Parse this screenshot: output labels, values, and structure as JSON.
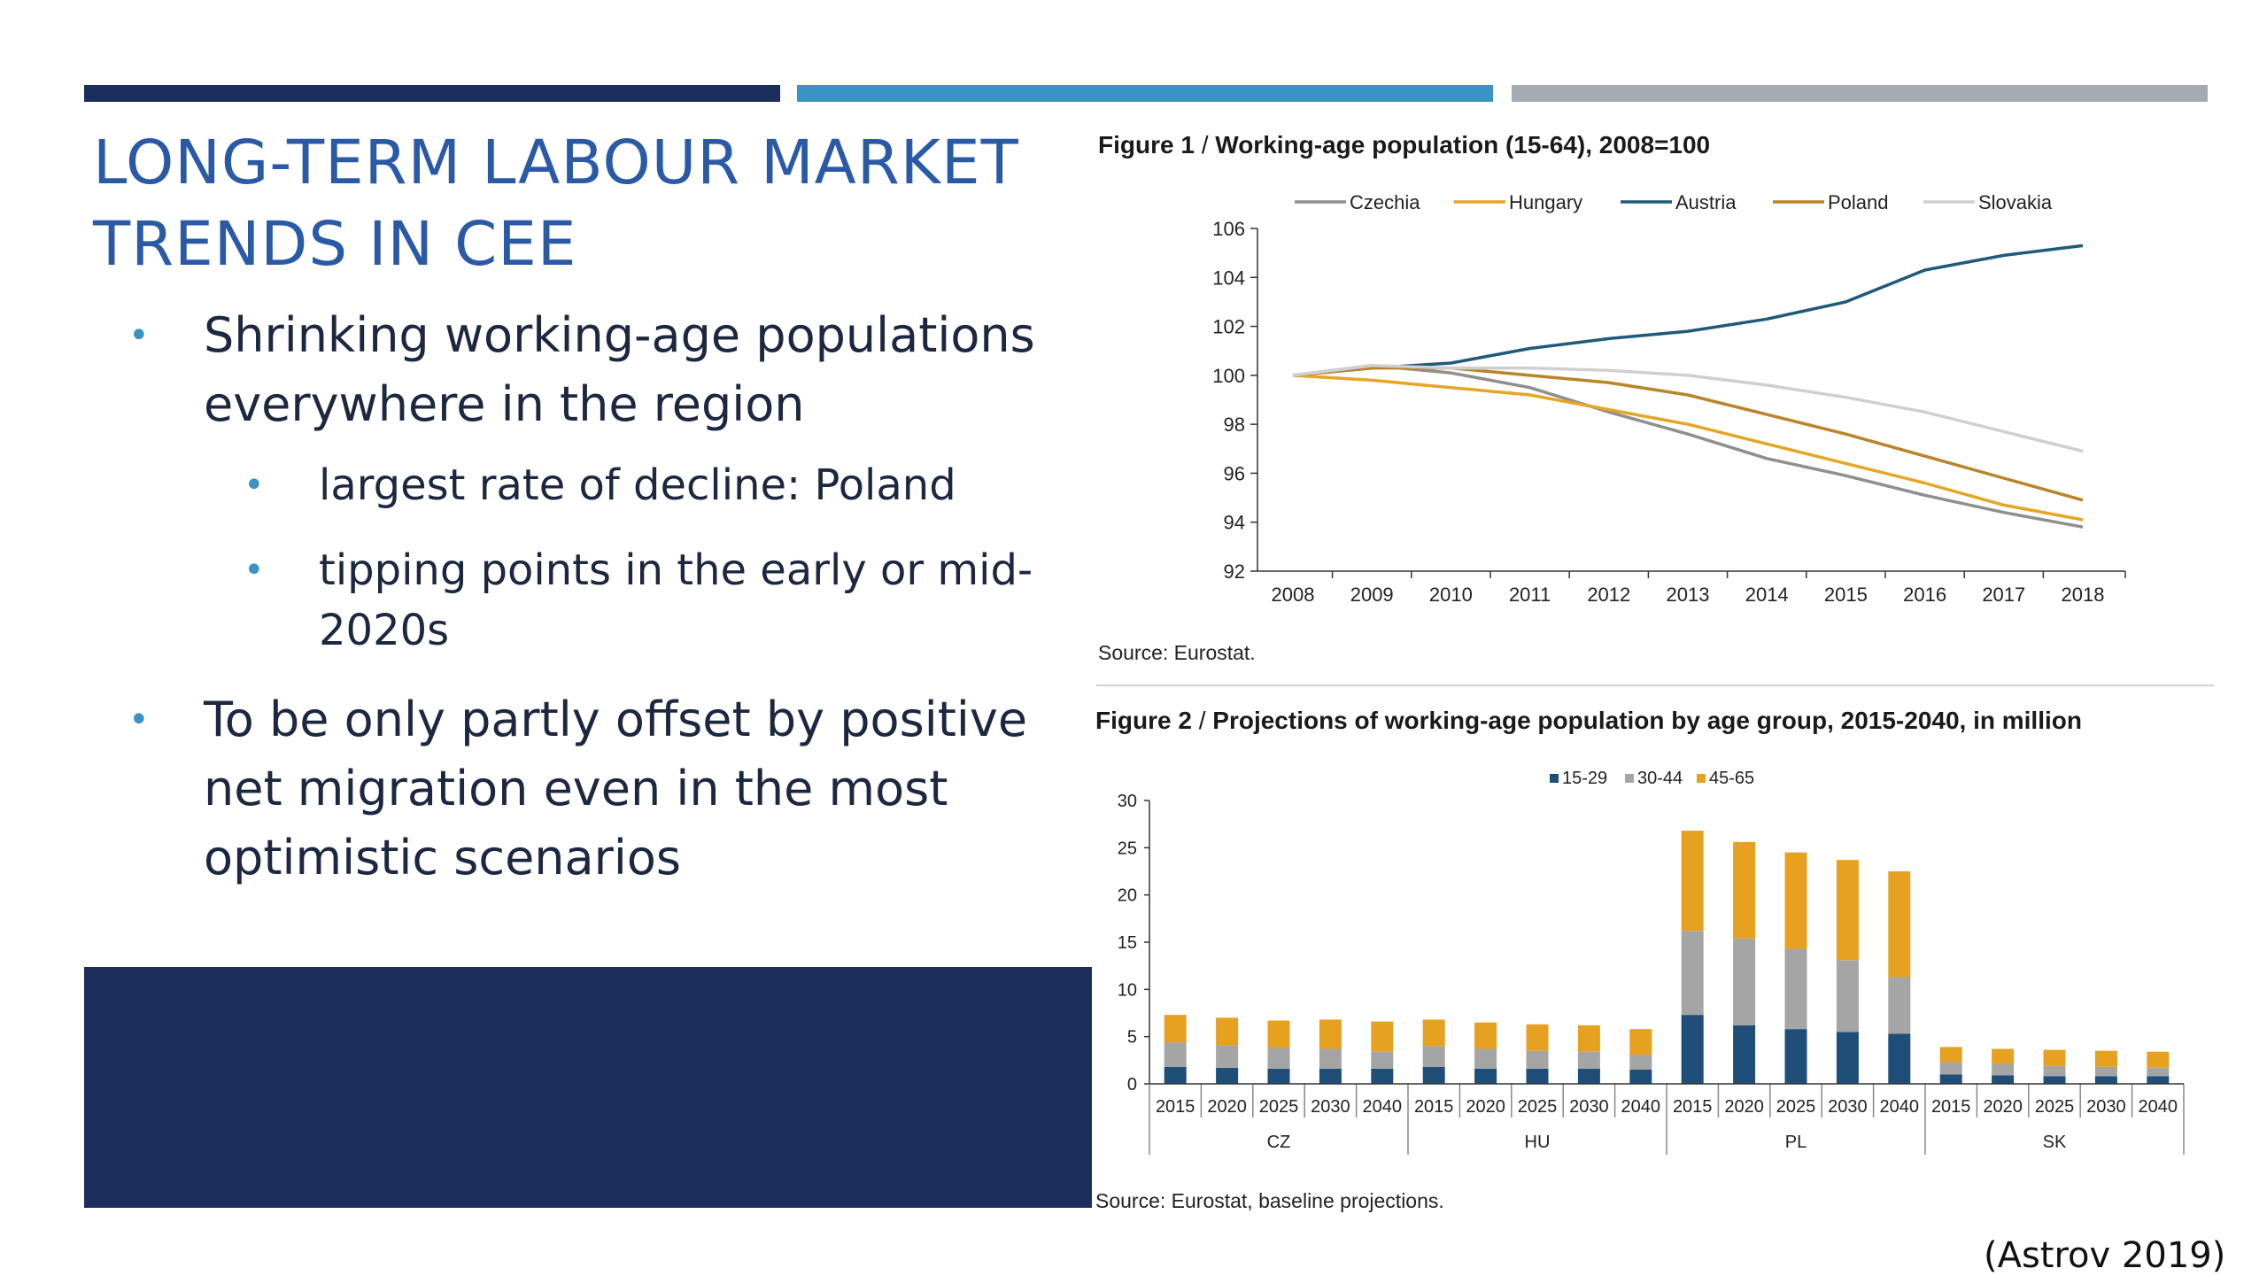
{
  "slide": {
    "title_line1": "LONG-TERM LABOUR MARKET",
    "title_line2": "TRENDS IN CEE",
    "bullets": [
      "Shrinking working-age populations everywhere in the region",
      "largest rate of decline: Poland",
      "tipping points in the early or mid-2020s",
      "To be only partly offset by positive net migration even in the most optimistic scenarios"
    ],
    "citation": "(Astrov 2019)",
    "colors": {
      "accent_dark": "#1c2e5c",
      "accent_light": "#3a93c4",
      "accent_grey": "#a5abb2",
      "title": "#2a5aa6"
    }
  },
  "figures": {
    "fig1": {
      "prefix": "Figure 1",
      "title": "Working-age population (15-64), 2008=100",
      "source": "Source: Eurostat."
    },
    "fig2": {
      "prefix": "Figure 2",
      "title": "Projections of working-age population by age group, 2015-2040, in million",
      "source": "Source: Eurostat, baseline projections."
    },
    "sep": " / "
  },
  "chart_data": [
    {
      "type": "line",
      "x": [
        2008,
        2009,
        2010,
        2011,
        2012,
        2013,
        2014,
        2015,
        2016,
        2017,
        2018
      ],
      "ylim": [
        92,
        106
      ],
      "yticks": [
        92,
        94,
        96,
        98,
        100,
        102,
        104,
        106
      ],
      "legend_position": "top",
      "series": [
        {
          "name": "Czechia",
          "color": "#8f8f8f",
          "values": [
            100,
            100.4,
            100.1,
            99.5,
            98.5,
            97.6,
            96.6,
            95.9,
            95.1,
            94.4,
            93.8
          ]
        },
        {
          "name": "Hungary",
          "color": "#e5a626",
          "values": [
            100,
            99.8,
            99.5,
            99.2,
            98.6,
            98.0,
            97.2,
            96.4,
            95.6,
            94.7,
            94.1
          ]
        },
        {
          "name": "Austria",
          "color": "#1f5a7a",
          "values": [
            100,
            100.3,
            100.5,
            101.1,
            101.5,
            101.8,
            102.3,
            103.0,
            104.3,
            104.9,
            105.3
          ]
        },
        {
          "name": "Poland",
          "color": "#b9842a",
          "values": [
            100,
            100.3,
            100.3,
            100.0,
            99.7,
            99.2,
            98.4,
            97.6,
            96.7,
            95.8,
            94.9
          ]
        },
        {
          "name": "Slovakia",
          "color": "#cfcfcf",
          "values": [
            100,
            100.4,
            100.3,
            100.3,
            100.2,
            100.0,
            99.6,
            99.1,
            98.5,
            97.7,
            96.9
          ]
        }
      ]
    },
    {
      "type": "bar",
      "stacked": true,
      "ylim": [
        0,
        30
      ],
      "yticks": [
        0,
        5,
        10,
        15,
        20,
        25,
        30
      ],
      "legend_position": "top",
      "groups": [
        {
          "name": "CZ",
          "categories": [
            "2015",
            "2020",
            "2025",
            "2030",
            "2040"
          ]
        },
        {
          "name": "HU",
          "categories": [
            "2015",
            "2020",
            "2025",
            "2030",
            "2040"
          ]
        },
        {
          "name": "PL",
          "categories": [
            "2015",
            "2020",
            "2025",
            "2030",
            "2040"
          ]
        },
        {
          "name": "SK",
          "categories": [
            "2015",
            "2020",
            "2025",
            "2030",
            "2040"
          ]
        }
      ],
      "series": [
        {
          "name": "15-29",
          "color": "#1f4e79",
          "values": [
            1.8,
            1.7,
            1.6,
            1.6,
            1.6,
            1.8,
            1.6,
            1.6,
            1.6,
            1.5,
            7.3,
            6.2,
            5.8,
            5.5,
            5.3,
            1.0,
            0.9,
            0.8,
            0.8,
            0.8
          ]
        },
        {
          "name": "30-44",
          "color": "#a5a5a5",
          "values": [
            2.6,
            2.4,
            2.2,
            2.1,
            1.8,
            2.2,
            2.1,
            1.9,
            1.8,
            1.6,
            8.9,
            9.2,
            8.5,
            7.6,
            6.0,
            1.3,
            1.2,
            1.1,
            1.0,
            0.9
          ]
        },
        {
          "name": "45-65",
          "color": "#e5a11f",
          "values": [
            2.9,
            2.9,
            2.9,
            3.1,
            3.2,
            2.8,
            2.8,
            2.8,
            2.8,
            2.7,
            10.6,
            10.2,
            10.2,
            10.6,
            11.2,
            1.6,
            1.6,
            1.7,
            1.7,
            1.7
          ]
        }
      ]
    }
  ]
}
